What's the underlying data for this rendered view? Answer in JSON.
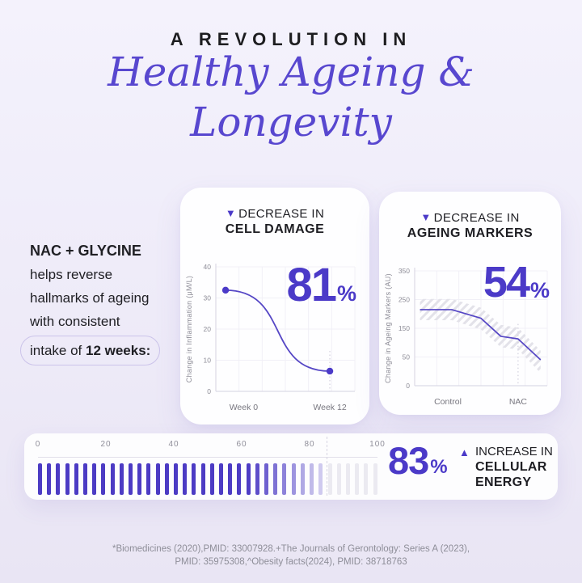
{
  "header": {
    "kicker": "A REVOLUTION IN",
    "title_line1": "Healthy Ageing &",
    "title_line2": "Longevity"
  },
  "intro": {
    "heading": "NAC + GLYCINE",
    "line1": "helps reverse",
    "line2": "hallmarks of ageing",
    "line3": "with consistent",
    "pill_prefix": "intake of ",
    "pill_bold": "12 weeks:"
  },
  "colors": {
    "accent": "#4B3AC8",
    "title_purple": "#5847CF",
    "bar_purple": "#4C3BC4",
    "bar_gray": "#EBEAF1",
    "line_purple": "#5546C5",
    "muted": "#8D8C97",
    "hatch": "#E3E2E9"
  },
  "cards": {
    "cell_damage": {
      "eyebrow": "DECREASE IN",
      "title": "CELL DAMAGE",
      "pct_value": "81",
      "pct_sign": "%"
    },
    "ageing_markers": {
      "eyebrow": "DECREASE IN",
      "title": "AGEING MARKERS",
      "pct_value": "54",
      "pct_sign": "%"
    },
    "cellular_energy": {
      "eyebrow": "INCREASE IN",
      "title_line1": "CELLULAR",
      "title_line2": "ENERGY",
      "pct_value": "83",
      "pct_sign": "%"
    }
  },
  "chart_data": [
    {
      "type": "line",
      "title": "Decrease in Cell Damage",
      "pct": 81,
      "ylabel": "Change in Inflammation (μM/L)",
      "yticks": [
        0,
        10,
        20,
        30,
        40
      ],
      "ylim": [
        0,
        45
      ],
      "x": [
        {
          "label": "Week 0",
          "f": 0.2
        },
        {
          "label": "Week 12",
          "f": 0.82
        }
      ],
      "series": [
        {
          "name": "Inflammation",
          "points": [
            {
              "f": 0.07,
              "v": 32.5
            },
            {
              "f": 0.82,
              "v": 6.5
            }
          ]
        }
      ],
      "curve": "sigmoid",
      "dots": true,
      "dash": {
        "f": 0.82,
        "v_top": 13
      },
      "grid": true,
      "legend": "none"
    },
    {
      "type": "line",
      "title": "Decrease in Ageing Markers",
      "pct": 54,
      "ylabel": "Change in Ageing Markers (AU)",
      "yticks": [
        0,
        50,
        150,
        250,
        350
      ],
      "ylim": [
        0,
        400
      ],
      "x": [
        {
          "label": "Control",
          "f": 0.25
        },
        {
          "label": "NAC",
          "f": 0.78
        }
      ],
      "series": [
        {
          "name": "Ageing markers",
          "points": [
            {
              "f": 0.04,
              "v": 215
            },
            {
              "f": 0.28,
              "v": 215
            },
            {
              "f": 0.5,
              "v": 185
            },
            {
              "f": 0.65,
              "v": 122
            },
            {
              "f": 0.78,
              "v": 113
            },
            {
              "f": 0.95,
              "v": 45
            }
          ]
        }
      ],
      "band": {
        "upper": [
          252,
          252,
          222,
          162,
          152,
          72
        ],
        "lower": [
          178,
          178,
          146,
          84,
          76,
          22
        ]
      },
      "curve": "straight",
      "dots": false,
      "dash": {
        "f": 0.78,
        "v_top": 165
      },
      "grid": true,
      "legend": "none"
    },
    {
      "type": "bar-scale",
      "title": "Increase in Cellular Energy",
      "pct": 83,
      "ticks": [
        0,
        20,
        40,
        60,
        80,
        100
      ],
      "n_bars": 38,
      "solid_until": 62,
      "fade_until": 85,
      "dash_at": 85
    }
  ],
  "footer": {
    "line1": "*Biomedicines  (2020),PMID: 33007928.+The Journals of Gerontology: Series A (2023),",
    "line2": "PMID: 35975308,^Obesity facts(2024), PMID: 38718763"
  }
}
